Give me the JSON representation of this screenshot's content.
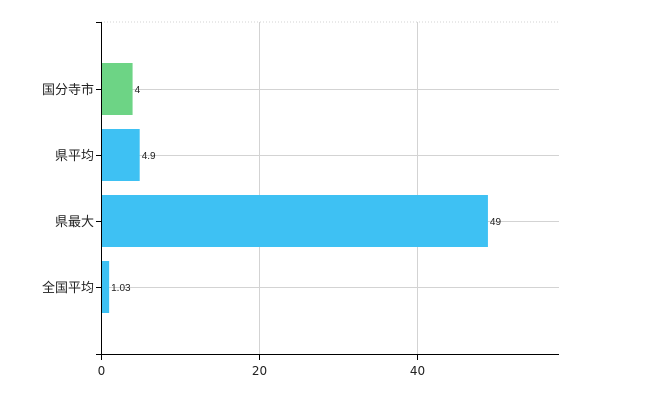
{
  "chart_data": {
    "type": "bar",
    "orientation": "horizontal",
    "categories": [
      "国分寺市",
      "県平均",
      "県最大",
      "全国平均"
    ],
    "values": [
      4,
      4.9,
      49,
      1.03
    ],
    "data_labels": [
      "4",
      "4.9",
      "49",
      "1.03"
    ],
    "bar_colors": [
      "#6dd485",
      "#3ec1f3",
      "#3ec1f3",
      "#3ec1f3"
    ],
    "xlim": [
      0,
      58
    ],
    "x_ticks": [
      0,
      20,
      40
    ],
    "x_tick_labels": [
      "0",
      "20",
      "40"
    ],
    "grid": true,
    "title": "",
    "xlabel": "",
    "ylabel": ""
  },
  "colors": {
    "highlight": "#6dd485",
    "default": "#3ec1f3",
    "grid": "#d3d3d3",
    "axis": "#000000"
  }
}
